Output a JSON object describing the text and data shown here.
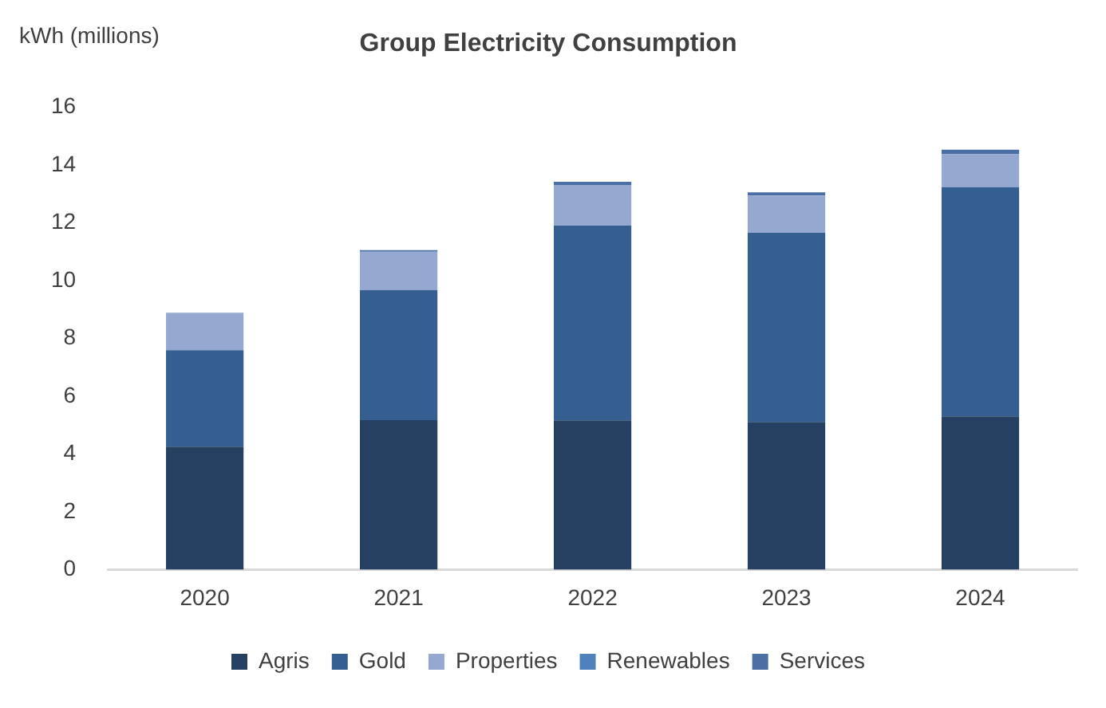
{
  "chart_data": {
    "type": "bar",
    "title": "Group Electricity Consumption",
    "ylabel": "kWh (millions)",
    "categories": [
      "2020",
      "2021",
      "2022",
      "2023",
      "2024"
    ],
    "stacked": true,
    "series": [
      {
        "name": "Agris",
        "color": "#264061",
        "values": [
          4.25,
          5.17,
          5.16,
          5.11,
          5.3
        ]
      },
      {
        "name": "Gold",
        "color": "#355f91",
        "values": [
          3.34,
          4.5,
          6.74,
          6.54,
          7.93
        ]
      },
      {
        "name": "Properties",
        "color": "#95a9d0",
        "values": [
          1.26,
          1.33,
          1.41,
          1.29,
          1.14
        ]
      },
      {
        "name": "Renewables",
        "color": "#4f81bd",
        "values": [
          null,
          null,
          null,
          null,
          null
        ]
      },
      {
        "name": "Services",
        "color": "#4a6fa5",
        "values": [
          0.03,
          0.05,
          0.11,
          0.11,
          0.16
        ]
      }
    ],
    "ylim": [
      0,
      16
    ],
    "yticks": [
      0,
      2,
      4,
      6,
      8,
      10,
      12,
      14,
      16
    ],
    "grid": false,
    "legend": "bottom"
  }
}
